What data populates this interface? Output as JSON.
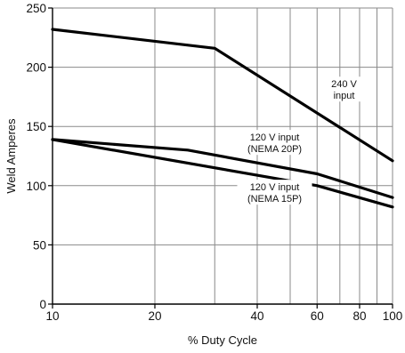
{
  "chart_data": {
    "type": "line",
    "title": "",
    "xlabel": "% Duty Cycle",
    "ylabel": "Weld Amperes",
    "xscale": "log",
    "xlim": [
      10,
      100
    ],
    "ylim": [
      0,
      250
    ],
    "xticks": [
      10,
      20,
      40,
      60,
      80,
      100
    ],
    "yticks": [
      0,
      50,
      100,
      150,
      200,
      250
    ],
    "x_minor_gridlines": [
      30,
      50,
      70,
      90
    ],
    "y_gridlines": [
      50,
      100,
      150,
      200,
      250
    ],
    "grid": true,
    "legend": "none",
    "series": [
      {
        "name": "240 V input",
        "x": [
          10,
          30,
          100
        ],
        "y": [
          232,
          216,
          121
        ]
      },
      {
        "name": "120 V input (NEMA 20P)",
        "x": [
          10,
          25,
          60,
          100
        ],
        "y": [
          139,
          130,
          110,
          90
        ]
      },
      {
        "name": "120 V input (NEMA 15P)",
        "x": [
          10,
          60,
          100
        ],
        "y": [
          139,
          100,
          82
        ]
      }
    ],
    "annotations": [
      {
        "lines": [
          "240 V",
          "input"
        ],
        "x": 72,
        "y": 183
      },
      {
        "lines": [
          "120 V input",
          "(NEMA 20P)"
        ],
        "x": 45,
        "y": 138
      },
      {
        "lines": [
          "120 V input",
          "(NEMA 15P)"
        ],
        "x": 45,
        "y": 96
      }
    ]
  }
}
